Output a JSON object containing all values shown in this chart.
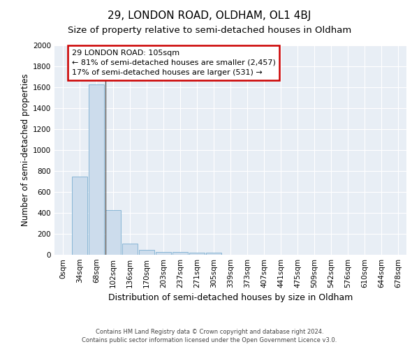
{
  "title": "29, LONDON ROAD, OLDHAM, OL1 4BJ",
  "subtitle": "Size of property relative to semi-detached houses in Oldham",
  "xlabel": "Distribution of semi-detached houses by size in Oldham",
  "ylabel": "Number of semi-detached properties",
  "footer_line1": "Contains HM Land Registry data © Crown copyright and database right 2024.",
  "footer_line2": "Contains public sector information licensed under the Open Government Licence v3.0.",
  "categories": [
    "0sqm",
    "34sqm",
    "68sqm",
    "102sqm",
    "136sqm",
    "170sqm",
    "203sqm",
    "237sqm",
    "271sqm",
    "305sqm",
    "339sqm",
    "373sqm",
    "407sqm",
    "441sqm",
    "475sqm",
    "509sqm",
    "542sqm",
    "576sqm",
    "610sqm",
    "644sqm",
    "678sqm"
  ],
  "values": [
    0,
    750,
    1630,
    430,
    108,
    50,
    30,
    25,
    18,
    18,
    0,
    0,
    0,
    0,
    0,
    0,
    0,
    0,
    0,
    0,
    0
  ],
  "bar_color": "#ccdcec",
  "bar_edge_color": "#7aaed0",
  "property_bin_index": 3,
  "annotation_title": "29 LONDON ROAD: 105sqm",
  "annotation_line1": "← 81% of semi-detached houses are smaller (2,457)",
  "annotation_line2": "17% of semi-detached houses are larger (531) →",
  "annotation_box_color": "#cc0000",
  "marker_line_color": "#555555",
  "ylim": [
    0,
    2000
  ],
  "yticks": [
    0,
    200,
    400,
    600,
    800,
    1000,
    1200,
    1400,
    1600,
    1800,
    2000
  ],
  "fig_background": "#ffffff",
  "plot_background": "#e8eef5",
  "grid_color": "#ffffff",
  "title_fontsize": 11,
  "subtitle_fontsize": 9.5,
  "xlabel_fontsize": 9,
  "ylabel_fontsize": 8.5,
  "tick_fontsize": 7.5,
  "annot_fontsize": 8
}
